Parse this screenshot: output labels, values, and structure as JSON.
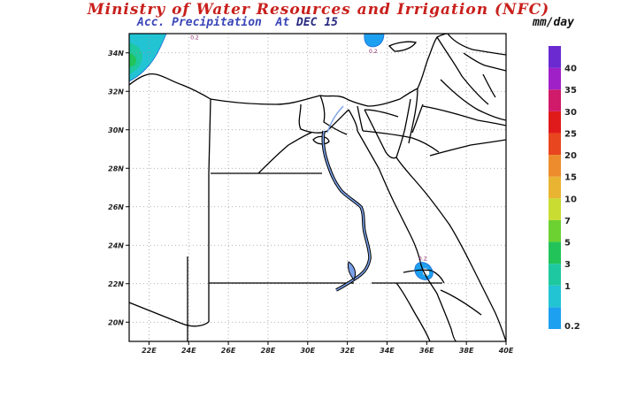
{
  "header": {
    "title": "Ministry of Water Resources and Irrigation (NFC)",
    "subtitle_label": "Acc. Precipitation",
    "subtitle_at": "At",
    "subtitle_date": "DEC 15",
    "units": "mm/day"
  },
  "map": {
    "lon_ticks": [
      "22E",
      "24E",
      "26E",
      "28E",
      "30E",
      "32E",
      "34E",
      "36E",
      "38E",
      "40E"
    ],
    "lat_ticks": [
      "20N",
      "22N",
      "24N",
      "26N",
      "28N",
      "30N",
      "32N",
      "34N"
    ],
    "lon_range": [
      21,
      40
    ],
    "lat_range": [
      19,
      35
    ],
    "grid": "dotted",
    "contour_labels": [
      {
        "text": "0.2",
        "lon": 24.3,
        "lat": 34.7
      },
      {
        "text": "0.2",
        "lon": 33.3,
        "lat": 34.0
      },
      {
        "text": "0.2",
        "lon": 35.8,
        "lat": 23.2
      }
    ]
  },
  "colorbar": {
    "levels": [
      {
        "label": "0.2",
        "color": "#1ea0f0"
      },
      {
        "label": "1",
        "color": "#22c4d4"
      },
      {
        "label": "3",
        "color": "#1ec8a0"
      },
      {
        "label": "5",
        "color": "#22c45a"
      },
      {
        "label": "7",
        "color": "#6cd232"
      },
      {
        "label": "10",
        "color": "#c8dc32"
      },
      {
        "label": "15",
        "color": "#e8b432"
      },
      {
        "label": "20",
        "color": "#ec8c2c"
      },
      {
        "label": "25",
        "color": "#e8461e"
      },
      {
        "label": "30",
        "color": "#e01a1a"
      },
      {
        "label": "35",
        "color": "#d01a6a"
      },
      {
        "label": "40",
        "color": "#a020c8"
      },
      {
        "label": "",
        "color": "#6a2ad0"
      }
    ]
  }
}
